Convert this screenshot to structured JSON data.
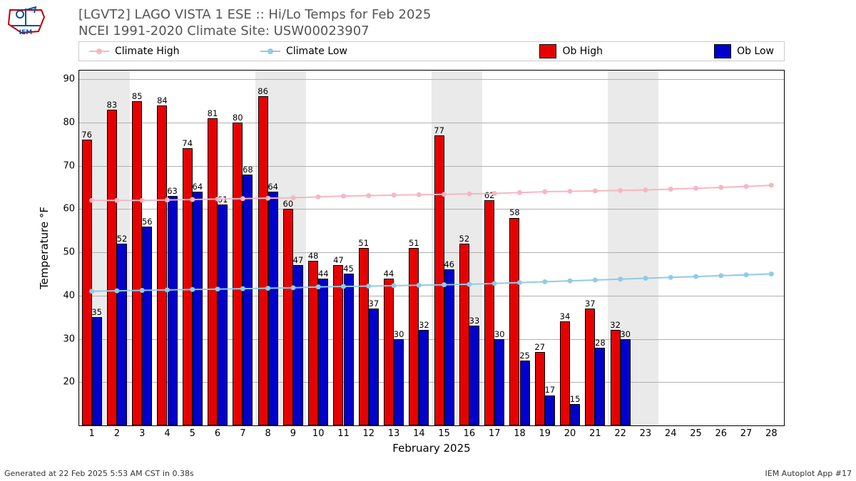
{
  "title_line1": "[LGVT2] LAGO VISTA 1 ESE :: Hi/Lo Temps for Feb 2025",
  "title_line2": "NCEI 1991-2020 Climate Site: USW00023907",
  "footer_left": "Generated at 22 Feb 2025 5:53 AM CST in 0.38s",
  "footer_right": "IEM Autoplot App #17",
  "ylabel": "Temperature °F",
  "xlabel": "February 2025",
  "legend": {
    "climate_high": "Climate High",
    "climate_low": "Climate Low",
    "ob_high": "Ob High",
    "ob_low": "Ob Low"
  },
  "colors": {
    "ob_high_fill": "#e60000",
    "ob_low_fill": "#0000cc",
    "climate_high_line": "#f7b6c2",
    "climate_low_line": "#8fcbe6",
    "bar_border": "#000000",
    "grid": "#b0b0b0",
    "weekend_band": "#eaeaea",
    "title_color": "#555555",
    "background": "#ffffff"
  },
  "axes": {
    "ymin": 10,
    "ymax": 92,
    "yticks": [
      20,
      30,
      40,
      50,
      60,
      70,
      80,
      90
    ],
    "days": [
      1,
      2,
      3,
      4,
      5,
      6,
      7,
      8,
      9,
      10,
      11,
      12,
      13,
      14,
      15,
      16,
      17,
      18,
      19,
      20,
      21,
      22,
      23,
      24,
      25,
      26,
      27,
      28
    ],
    "bar_width_frac": 0.4,
    "marker_radius": 3.5,
    "line_width": 2
  },
  "weekend_bands": [
    [
      1,
      2
    ],
    [
      8,
      9
    ],
    [
      15,
      16
    ],
    [
      22,
      23
    ]
  ],
  "ob_high": [
    76,
    83,
    85,
    84,
    74,
    81,
    80,
    86,
    60,
    48,
    47,
    51,
    44,
    51,
    77,
    52,
    62,
    58,
    27,
    34,
    37,
    32
  ],
  "ob_low": [
    35,
    52,
    56,
    63,
    64,
    61,
    68,
    64,
    47,
    44,
    45,
    37,
    30,
    32,
    46,
    33,
    30,
    25,
    17,
    15,
    28,
    30
  ],
  "climate_high": [
    62.0,
    62.0,
    62.0,
    62.1,
    62.2,
    62.3,
    62.4,
    62.5,
    62.6,
    62.8,
    63.0,
    63.1,
    63.2,
    63.3,
    63.4,
    63.5,
    63.6,
    63.8,
    64.0,
    64.1,
    64.2,
    64.3,
    64.4,
    64.6,
    64.8,
    65.0,
    65.2,
    65.5
  ],
  "climate_low": [
    41.0,
    41.1,
    41.2,
    41.3,
    41.4,
    41.5,
    41.6,
    41.7,
    41.8,
    42.0,
    42.1,
    42.2,
    42.3,
    42.4,
    42.5,
    42.6,
    42.8,
    43.0,
    43.2,
    43.4,
    43.6,
    43.8,
    44.0,
    44.2,
    44.4,
    44.6,
    44.8,
    45.0
  ]
}
